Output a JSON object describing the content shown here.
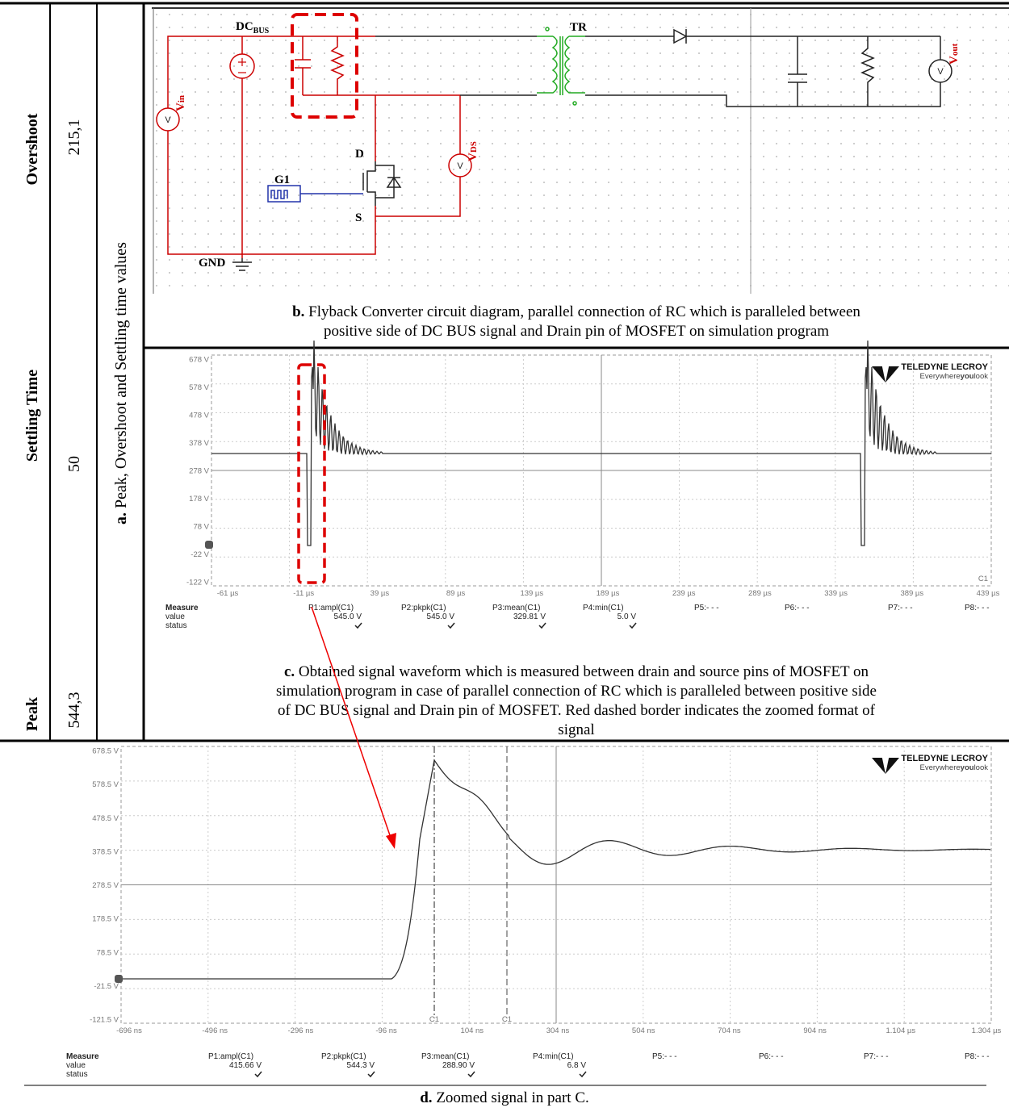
{
  "table": {
    "headers": [
      "Overshoot",
      "Settling Time",
      "Peak"
    ],
    "values": [
      "215,1",
      "50",
      "544,3"
    ],
    "caption_prefix": "a.",
    "caption": "Peak, Overshoot and Settling time values"
  },
  "circuit": {
    "dc": "DC",
    "bus": "BUS",
    "tr": "TR",
    "v": "V",
    "in": "in",
    "ds": "DS",
    "out": "out",
    "d": "D",
    "s": "S",
    "g1": "G1",
    "gnd": "GND"
  },
  "caption_b": {
    "prefix": "b.",
    "lines": [
      "Flyback Converter circuit diagram, parallel connection of RC which is paralleled between",
      "positive side of DC BUS signal and Drain pin of MOSFET on simulation program"
    ]
  },
  "scope_c": {
    "yticks": [
      "678 V",
      "578 V",
      "478 V",
      "378 V",
      "278 V",
      "178 V",
      "78 V",
      "-22 V",
      "-122 V"
    ],
    "xticks": [
      "-61 µs",
      "-11 µs",
      "39 µs",
      "89 µs",
      "139 µs",
      "189 µs",
      "239 µs",
      "289 µs",
      "339 µs",
      "389 µs",
      "439 µs"
    ],
    "channel": "C1",
    "brand": "TELEDYNE LECROY",
    "tagline": [
      "Everywhere",
      "you",
      "look"
    ],
    "measure_headers": [
      "Measure",
      "P1:ampl(C1)",
      "P2:pkpk(C1)",
      "P3:mean(C1)",
      "P4:min(C1)",
      "P5:- - -",
      "P6:- - -",
      "P7:- - -",
      "P8:- - -"
    ],
    "row_labels": [
      "value",
      "status"
    ],
    "measure_values": [
      "545.0 V",
      "545.0 V",
      "329.81 V",
      "5.0 V"
    ]
  },
  "caption_c": {
    "prefix": "c.",
    "lines": [
      "Obtained signal waveform which is measured between drain and source pins of MOSFET on",
      "simulation program in case of parallel connection of RC which is paralleled between positive side",
      "of DC BUS signal and Drain pin of MOSFET. Red dashed border indicates the zoomed format of",
      "signal"
    ]
  },
  "scope_d": {
    "yticks": [
      "678.5 V",
      "578.5 V",
      "478.5 V",
      "378.5 V",
      "278.5 V",
      "178.5 V",
      "78.5 V",
      "-21.5 V",
      "-121.5 V"
    ],
    "xticks": [
      "-696 ns",
      "-496 ns",
      "-296 ns",
      "-96 ns",
      "104 ns",
      "304 ns",
      "504 ns",
      "704 ns",
      "904 ns",
      "1.104 µs",
      "1.304 µs"
    ],
    "cursor": "C1",
    "brand": "TELEDYNE LECROY",
    "tagline": [
      "Everywhere",
      "you",
      "look"
    ],
    "measure_headers": [
      "Measure",
      "P1:ampl(C1)",
      "P2:pkpk(C1)",
      "P3:mean(C1)",
      "P4:min(C1)",
      "P5:- - -",
      "P6:- - -",
      "P7:- - -",
      "P8:- - -"
    ],
    "row_labels": [
      "value",
      "status"
    ],
    "measure_values": [
      "415.66 V",
      "544.3 V",
      "288.90 V",
      "6.8 V"
    ]
  },
  "caption_d": {
    "prefix": "d.",
    "text": "Zoomed signal in part C."
  }
}
